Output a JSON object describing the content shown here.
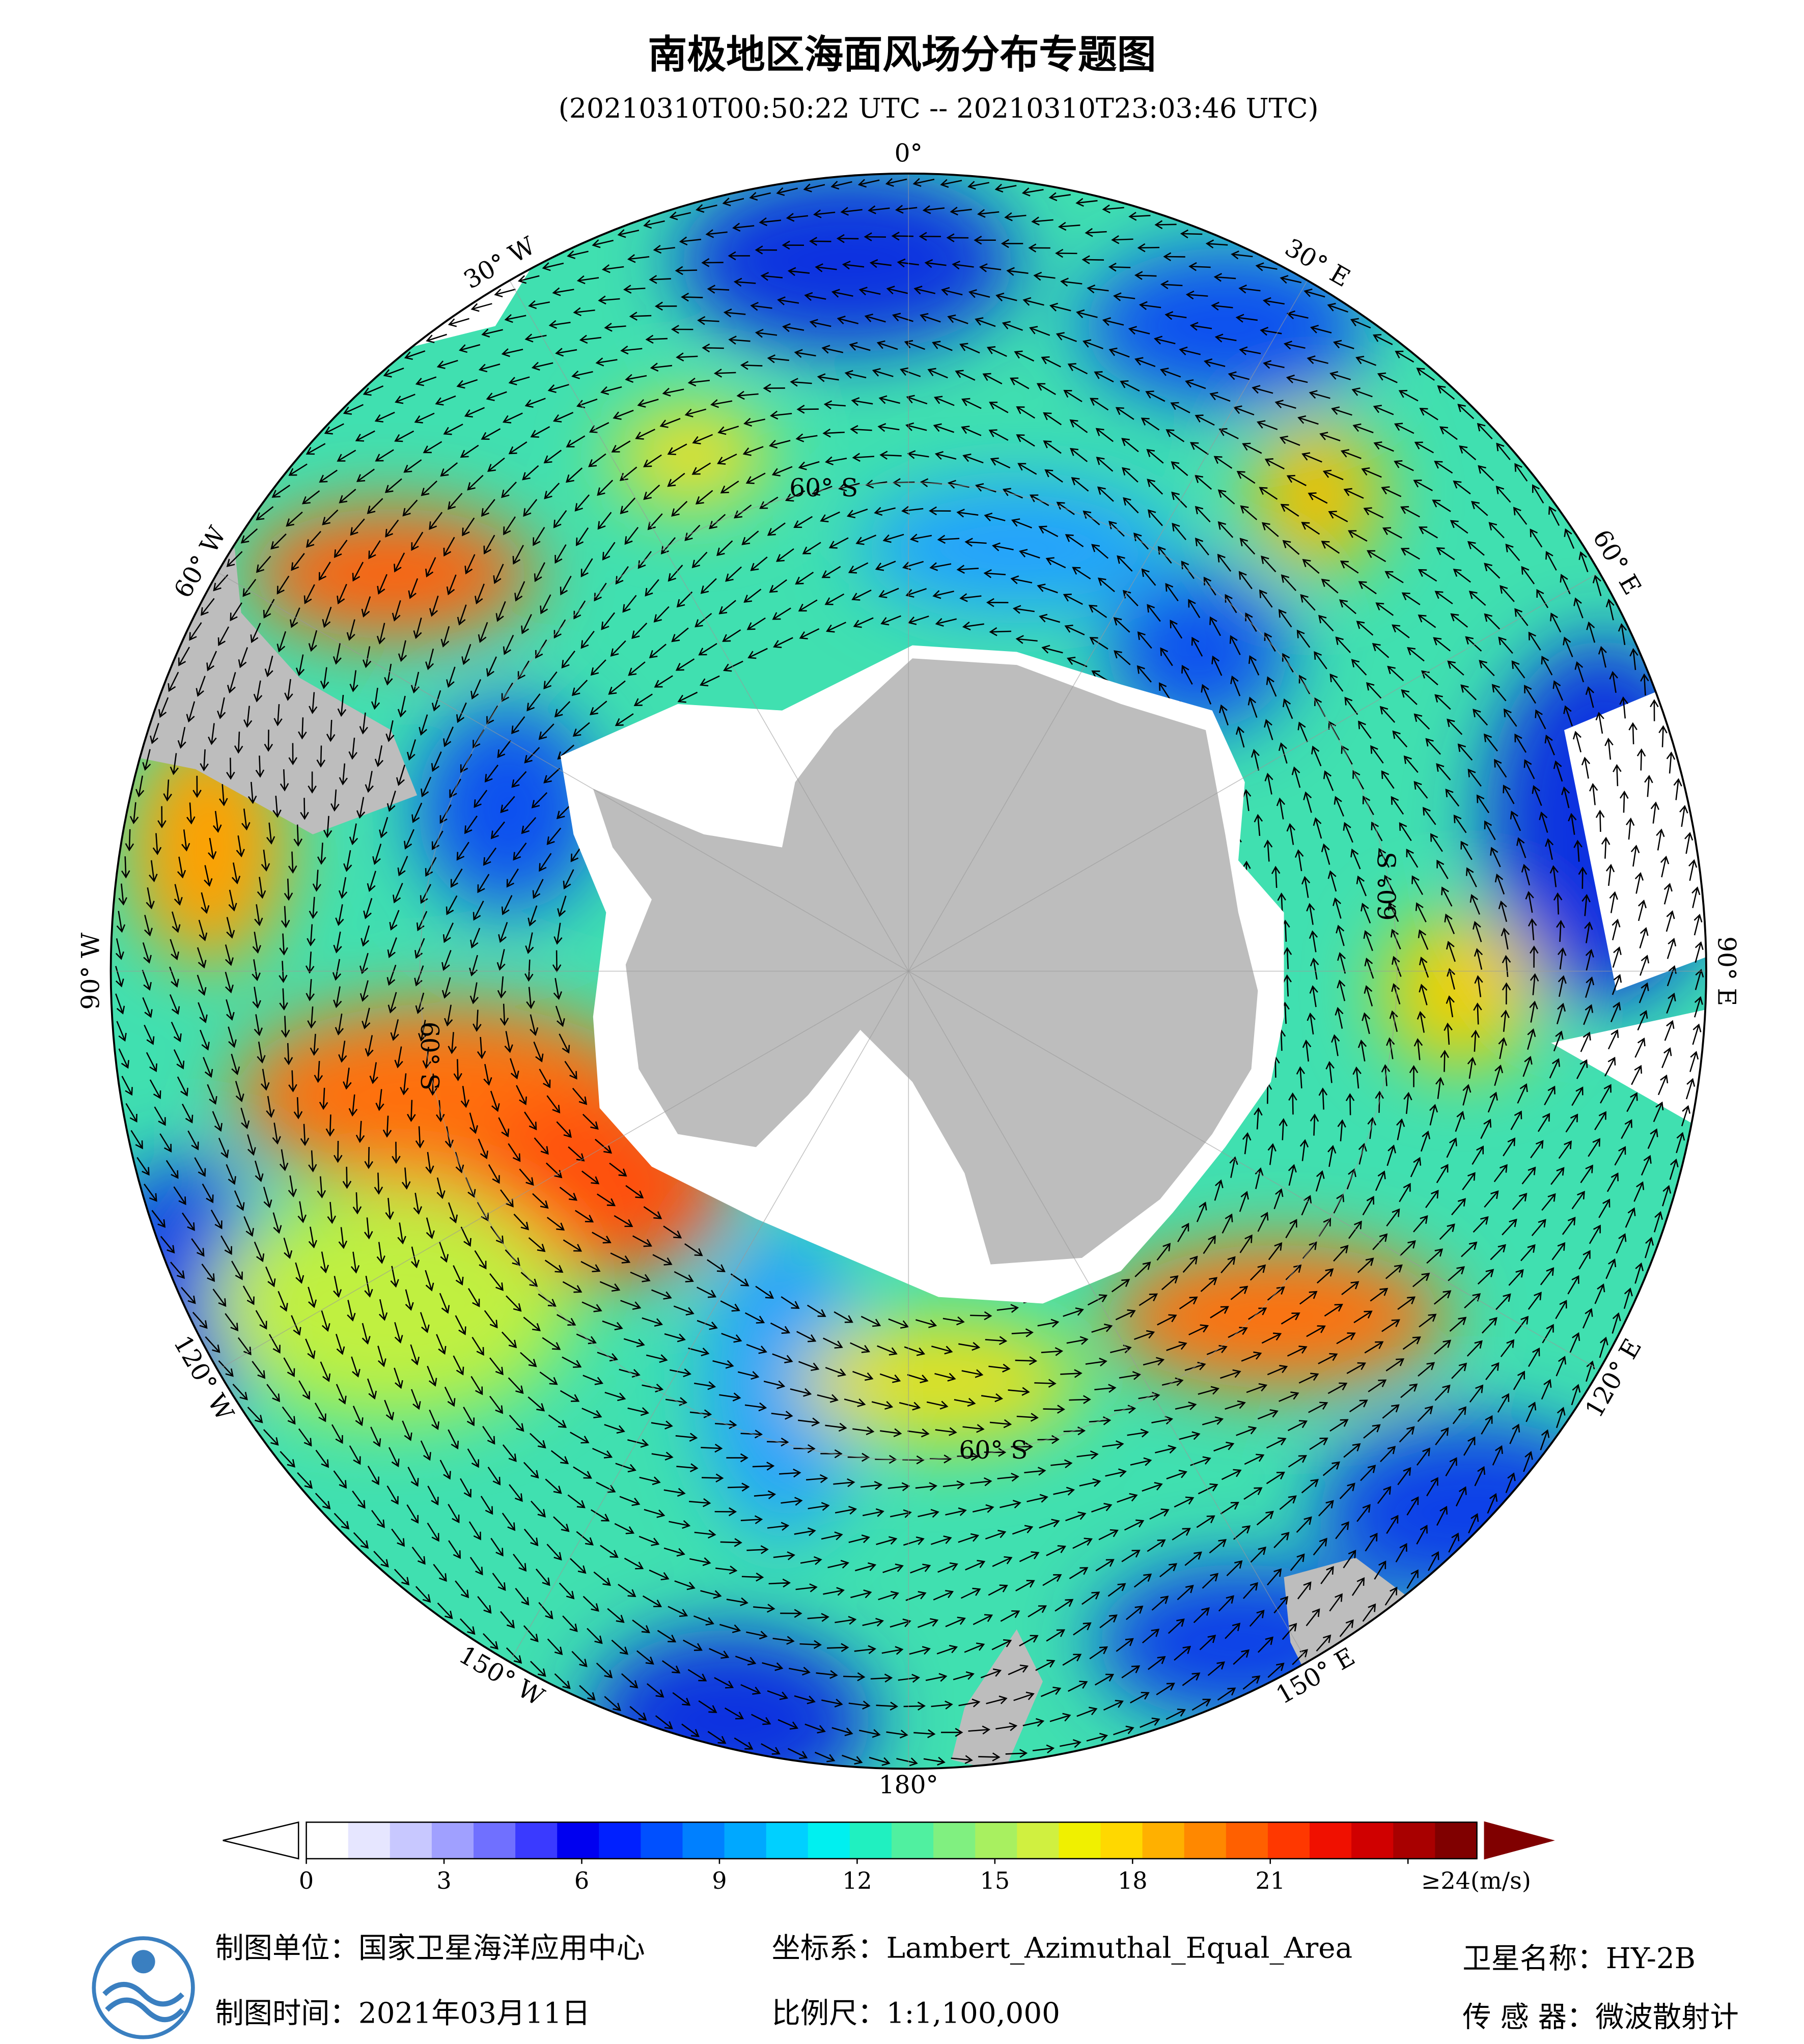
{
  "map": {
    "title": "南极地区海面风场分布专题图",
    "subtitle": "(20210310T00:50:22 UTC -- 20210310T23:03:46 UTC)",
    "latlim": [
      -90,
      -40
    ],
    "lonticks": [
      {
        "value": 0,
        "label": "0°"
      },
      {
        "value": 30,
        "label": "30° E"
      },
      {
        "value": 60,
        "label": "60° E"
      },
      {
        "value": 90,
        "label": "90° E"
      },
      {
        "value": 120,
        "label": "120° E"
      },
      {
        "value": 150,
        "label": "150° E"
      },
      {
        "value": 180,
        "label": "180°"
      },
      {
        "value": -150,
        "label": "150° W"
      },
      {
        "value": -120,
        "label": "120° W"
      },
      {
        "value": -90,
        "label": "90° W"
      },
      {
        "value": -60,
        "label": "60° W"
      },
      {
        "value": -30,
        "label": "30° W"
      }
    ],
    "latticks": [
      {
        "value": -60,
        "label": "60° S"
      }
    ],
    "colorbar": {
      "range": [
        0,
        25.5
      ],
      "ticks": [
        0,
        3,
        6,
        9,
        12,
        15,
        18,
        21,
        {
          "value": 24,
          "label": "≥24(m/s)"
        }
      ],
      "colors": [
        "#ffffff",
        "#e6e6ff",
        "#c8c8ff",
        "#a0a0ff",
        "#7070ff",
        "#3a3aff",
        "#0000f0",
        "#0020ff",
        "#0050ff",
        "#0080ff",
        "#00a8ff",
        "#00d0ff",
        "#00f0f0",
        "#20f0c0",
        "#50f0a0",
        "#80f080",
        "#a8f060",
        "#d0f040",
        "#f0f000",
        "#ffd800",
        "#ffb000",
        "#ff8800",
        "#ff6000",
        "#ff3800",
        "#f01000",
        "#d00000",
        "#a80000",
        "#800000"
      ]
    },
    "footer": {
      "unit": "制图单位：国家卫星海洋应用中心",
      "time": "制图时间：2021年03月11日",
      "crs": "坐标系：Lambert_Azimuthal_Equal_Area",
      "scale": "比例尺：1:1,100,000",
      "satellite": "卫星名称：HY-2B",
      "sensor": "传 感 器：微波散射计"
    }
  }
}
